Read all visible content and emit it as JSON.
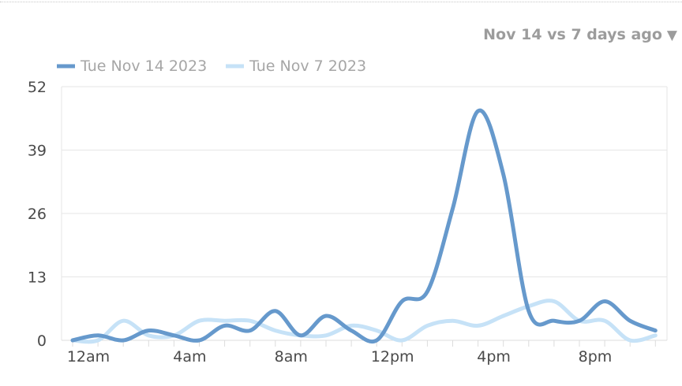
{
  "range_selector": {
    "label": "Nov 14 vs 7 days ago",
    "icon": "caret-down-icon"
  },
  "colors": {
    "primary_series": "#6699cc",
    "comparison_series": "#c6e2f7",
    "grid": "#e6e6e6",
    "axis_text": "#4a4a4a",
    "legend_text": "#a6a6a6"
  },
  "chart_data": {
    "type": "line",
    "title": "",
    "xlabel": "",
    "ylabel": "",
    "ylim": [
      0,
      52
    ],
    "yticks": [
      0,
      13,
      26,
      39,
      52
    ],
    "xticks": [
      {
        "hour": 0,
        "label": "12am"
      },
      {
        "hour": 4,
        "label": "4am"
      },
      {
        "hour": 8,
        "label": "8am"
      },
      {
        "hour": 12,
        "label": "12pm"
      },
      {
        "hour": 16,
        "label": "4pm"
      },
      {
        "hour": 20,
        "label": "8pm"
      }
    ],
    "x": [
      0,
      1,
      2,
      3,
      4,
      5,
      6,
      7,
      8,
      9,
      10,
      11,
      12,
      13,
      14,
      15,
      16,
      17,
      18,
      19,
      20,
      21,
      22,
      23
    ],
    "legend_position": "top-left",
    "grid": true,
    "series": [
      {
        "name": "Tue Nov 14 2023",
        "values": [
          0,
          1,
          0,
          2,
          1,
          0,
          3,
          2,
          6,
          1,
          5,
          2,
          0,
          8,
          10,
          27,
          47,
          34,
          6,
          4,
          4,
          8,
          4,
          2
        ]
      },
      {
        "name": "Tue Nov 7 2023",
        "values": [
          0,
          0,
          4,
          1,
          1,
          4,
          4,
          4,
          2,
          1,
          1,
          3,
          2,
          0,
          3,
          4,
          3,
          5,
          7,
          8,
          4,
          4,
          0,
          1
        ]
      }
    ]
  }
}
